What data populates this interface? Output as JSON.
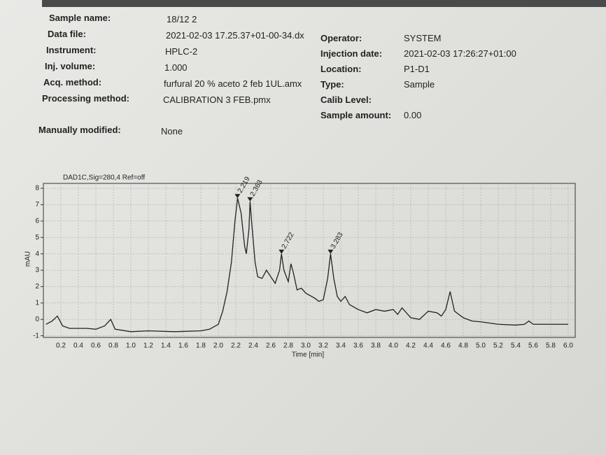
{
  "header": {
    "left": [
      {
        "label": "Sample name:",
        "value": "18/12 2"
      },
      {
        "label": "Data file:",
        "value": "2021-02-03 17.25.37+01-00-34.dx"
      },
      {
        "label": "Instrument:",
        "value": "HPLC-2"
      },
      {
        "label": "Inj. volume:",
        "value": "1.000"
      },
      {
        "label": "Acq. method:",
        "value": "furfural 20 % aceto 2 feb 1UL.amx"
      },
      {
        "label": "Processing method:",
        "value": "CALIBRATION 3 FEB.pmx"
      }
    ],
    "right": [
      {
        "label": "Operator:",
        "value": "SYSTEM"
      },
      {
        "label": "Injection date:",
        "value": "2021-02-03 17:26:27+01:00"
      },
      {
        "label": "Location:",
        "value": "P1-D1"
      },
      {
        "label": "Type:",
        "value": "Sample"
      },
      {
        "label": "Calib Level:"
      },
      {
        "label": "Sample amount:",
        "value": "0.00"
      }
    ],
    "modified": {
      "label": "Manually modified:",
      "value": "None"
    }
  },
  "chart_data": {
    "type": "line",
    "title": "DAD1C,Sig=280,4 Ref=off",
    "x_label": "Time [min]",
    "y_label": "mAU",
    "color": "#222222",
    "grid": true,
    "xlim": [
      0.0,
      6.08
    ],
    "ylim": [
      -1.1,
      8.3
    ],
    "xticks": [
      0.2,
      0.4,
      0.6,
      0.8,
      {
        "value": 1.0,
        "label": "1.0"
      },
      1.2,
      1.4,
      1.6,
      1.8,
      {
        "value": 2.0,
        "label": "2.0"
      },
      2.2,
      2.4,
      2.6,
      2.8,
      {
        "value": 3.0,
        "label": "3.0"
      },
      3.2,
      3.4,
      3.6,
      3.8,
      {
        "value": 4.0,
        "label": "4.0"
      },
      4.2,
      4.4,
      4.6,
      4.8,
      {
        "value": 5.0,
        "label": "5.0"
      },
      5.2,
      5.4,
      5.6,
      5.8,
      {
        "value": 6.0,
        "label": "6.0"
      }
    ],
    "yticks": [
      -1,
      0,
      1,
      2,
      3,
      4,
      5,
      6,
      7,
      8
    ],
    "peaks": [
      2.219,
      2.363,
      2.722,
      3.283
    ],
    "peak_heights": [
      7.4,
      7.2,
      4.0,
      4.0
    ],
    "series": [
      {
        "name": "DAD1C",
        "color": "#222222",
        "x": [
          0.03,
          0.1,
          0.16,
          0.22,
          0.3,
          0.5,
          0.6,
          0.7,
          0.77,
          0.82,
          1.0,
          1.2,
          1.5,
          1.8,
          1.9,
          2.0,
          2.05,
          2.1,
          2.15,
          2.19,
          2.22,
          2.26,
          2.3,
          2.32,
          2.35,
          2.363,
          2.38,
          2.42,
          2.45,
          2.5,
          2.55,
          2.6,
          2.65,
          2.7,
          2.722,
          2.75,
          2.8,
          2.83,
          2.86,
          2.9,
          2.95,
          3.0,
          3.1,
          3.15,
          3.2,
          3.25,
          3.283,
          3.32,
          3.36,
          3.4,
          3.45,
          3.5,
          3.6,
          3.7,
          3.8,
          3.9,
          4.0,
          4.05,
          4.1,
          4.2,
          4.3,
          4.4,
          4.5,
          4.55,
          4.6,
          4.65,
          4.7,
          4.8,
          4.9,
          5.0,
          5.2,
          5.4,
          5.5,
          5.55,
          5.6,
          5.8,
          6.0
        ],
        "values": [
          -0.3,
          -0.1,
          0.2,
          -0.4,
          -0.55,
          -0.55,
          -0.6,
          -0.4,
          0.0,
          -0.6,
          -0.75,
          -0.7,
          -0.75,
          -0.7,
          -0.6,
          -0.3,
          0.5,
          1.7,
          3.5,
          6.0,
          7.4,
          6.5,
          4.5,
          4.0,
          5.5,
          7.2,
          6.0,
          3.5,
          2.6,
          2.5,
          3.0,
          2.6,
          2.2,
          3.0,
          4.0,
          3.0,
          2.3,
          3.4,
          2.8,
          1.8,
          1.9,
          1.6,
          1.3,
          1.1,
          1.2,
          2.5,
          4.0,
          2.5,
          1.4,
          1.1,
          1.4,
          0.9,
          0.6,
          0.4,
          0.6,
          0.5,
          0.6,
          0.3,
          0.7,
          0.1,
          0.0,
          0.5,
          0.4,
          0.2,
          0.6,
          1.7,
          0.5,
          0.1,
          -0.1,
          -0.15,
          -0.3,
          -0.35,
          -0.3,
          -0.1,
          -0.3,
          -0.3,
          -0.3
        ]
      }
    ]
  }
}
